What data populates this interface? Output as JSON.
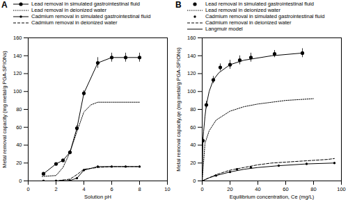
{
  "chart_data": [
    {
      "type": "line",
      "title": "A",
      "xlabel": "Solution pH",
      "ylabel": "Metal removal capacity (mg metal/g PGA-SPIONs)",
      "xlim": [
        0,
        10
      ],
      "xticks": [
        0,
        2,
        4,
        6,
        8,
        10
      ],
      "ylim": [
        0,
        160
      ],
      "yticks": [
        0,
        20,
        40,
        60,
        80,
        100,
        120,
        140,
        160
      ],
      "grid": false,
      "legend": "top",
      "series": [
        {
          "name": "Lead removal in simulated gastrointestinal fluid",
          "color": "#000000",
          "type": "line",
          "marker": "circle",
          "line_style": "solid",
          "x": [
            1.1,
            2,
            2.5,
            3,
            3.5,
            4,
            5,
            6,
            7,
            8
          ],
          "values": [
            8,
            19,
            23,
            32,
            59,
            98,
            132,
            138,
            138,
            138
          ],
          "errors": [
            1,
            1,
            1,
            2,
            3,
            3,
            6,
            5,
            5,
            5
          ]
        },
        {
          "name": "Lead removal in deionized water",
          "color": "#000000",
          "type": "line",
          "marker": "none",
          "line_style": "dotted",
          "x": [
            1,
            2,
            2.5,
            3,
            3.5,
            4,
            4.5,
            5,
            6,
            7,
            8
          ],
          "values": [
            5,
            6,
            15,
            32,
            55,
            77,
            85,
            88,
            88,
            88,
            88
          ]
        },
        {
          "name": "Cadmium removal in simulated gastrointestinal fluid",
          "color": "#000000",
          "type": "line",
          "marker": "dot",
          "line_style": "solid",
          "x": [
            1.1,
            2,
            2.5,
            3,
            3.5,
            4,
            5,
            6,
            7,
            8
          ],
          "values": [
            0,
            0,
            0,
            0.5,
            3,
            12,
            16,
            16,
            16,
            16
          ],
          "errors": [
            0.3,
            0.3,
            0.3,
            0.5,
            0.5,
            1,
            1,
            1,
            1,
            1
          ]
        },
        {
          "name": "Cadmium removal in deionized water",
          "color": "#000000",
          "type": "line",
          "marker": "none",
          "line_style": "dashed",
          "x": [
            1,
            2,
            3,
            3.5,
            4,
            5,
            6,
            7,
            8
          ],
          "values": [
            0,
            0,
            2,
            7,
            13,
            15,
            16,
            16,
            16
          ]
        }
      ]
    },
    {
      "type": "line",
      "title": "B",
      "xlabel": "Equilibrium concentration, Ce (mg/L)",
      "ylabel": "Metal removal capacity,qe (mg metal/g PGA-SPIONs)",
      "xlim": [
        0,
        100
      ],
      "xticks": [
        0,
        20,
        40,
        60,
        80,
        100
      ],
      "ylim": [
        0,
        160
      ],
      "yticks": [
        0,
        20,
        40,
        60,
        80,
        100,
        120,
        140,
        160
      ],
      "grid": false,
      "legend": "top",
      "series": [
        {
          "name": "Lead removal in simulated gastrointestinal fluid",
          "color": "#000000",
          "type": "scatter",
          "marker": "circle",
          "line_style": "none",
          "x": [
            0.5,
            3,
            8,
            13,
            20,
            27,
            35,
            52,
            72
          ],
          "values": [
            45,
            85,
            113,
            127,
            130,
            135,
            138,
            142,
            143
          ],
          "errors": [
            3,
            4,
            4,
            4,
            5,
            5,
            5,
            4,
            5
          ]
        },
        {
          "name": "Lead removal in deionized water",
          "color": "#000000",
          "type": "line",
          "marker": "none",
          "line_style": "dotted",
          "x": [
            0,
            2,
            5,
            10,
            20,
            30,
            40,
            50,
            60,
            70,
            80
          ],
          "values": [
            0,
            42,
            56,
            68,
            78,
            83,
            86,
            88,
            90,
            91,
            92
          ]
        },
        {
          "name": "Cadmium removal in simulated gastrointestinal fluid",
          "color": "#000000",
          "type": "scatter",
          "marker": "dot",
          "line_style": "none",
          "x": [
            0,
            10,
            20,
            25,
            35,
            55,
            75,
            95
          ],
          "values": [
            0,
            6,
            10,
            13,
            15,
            17,
            19,
            20
          ],
          "errors": [
            0,
            1,
            1,
            1,
            1,
            1,
            1,
            1
          ]
        },
        {
          "name": "Cadmium removal in deionized water",
          "color": "#000000",
          "type": "line",
          "marker": "none",
          "line_style": "dashed",
          "x": [
            0,
            10,
            20,
            30,
            40,
            50,
            60,
            70,
            80,
            90,
            95
          ],
          "values": [
            0,
            7,
            12,
            15,
            18,
            20,
            21,
            22,
            23,
            24,
            25
          ]
        },
        {
          "name": "Langmuir model",
          "color": "#000000",
          "type": "line",
          "marker": "none",
          "line_style": "solid",
          "x": [
            0,
            0.5,
            1,
            2,
            3,
            5,
            8,
            12,
            20,
            30,
            50,
            72,
            72,
            0,
            5,
            10,
            20,
            30,
            40,
            55,
            75,
            95
          ],
          "values": [
            0,
            45,
            55,
            72,
            85,
            100,
            113,
            121,
            130,
            135,
            140,
            143,
            null,
            0,
            3.5,
            6,
            10,
            13,
            15,
            17,
            19,
            20
          ]
        }
      ]
    }
  ]
}
